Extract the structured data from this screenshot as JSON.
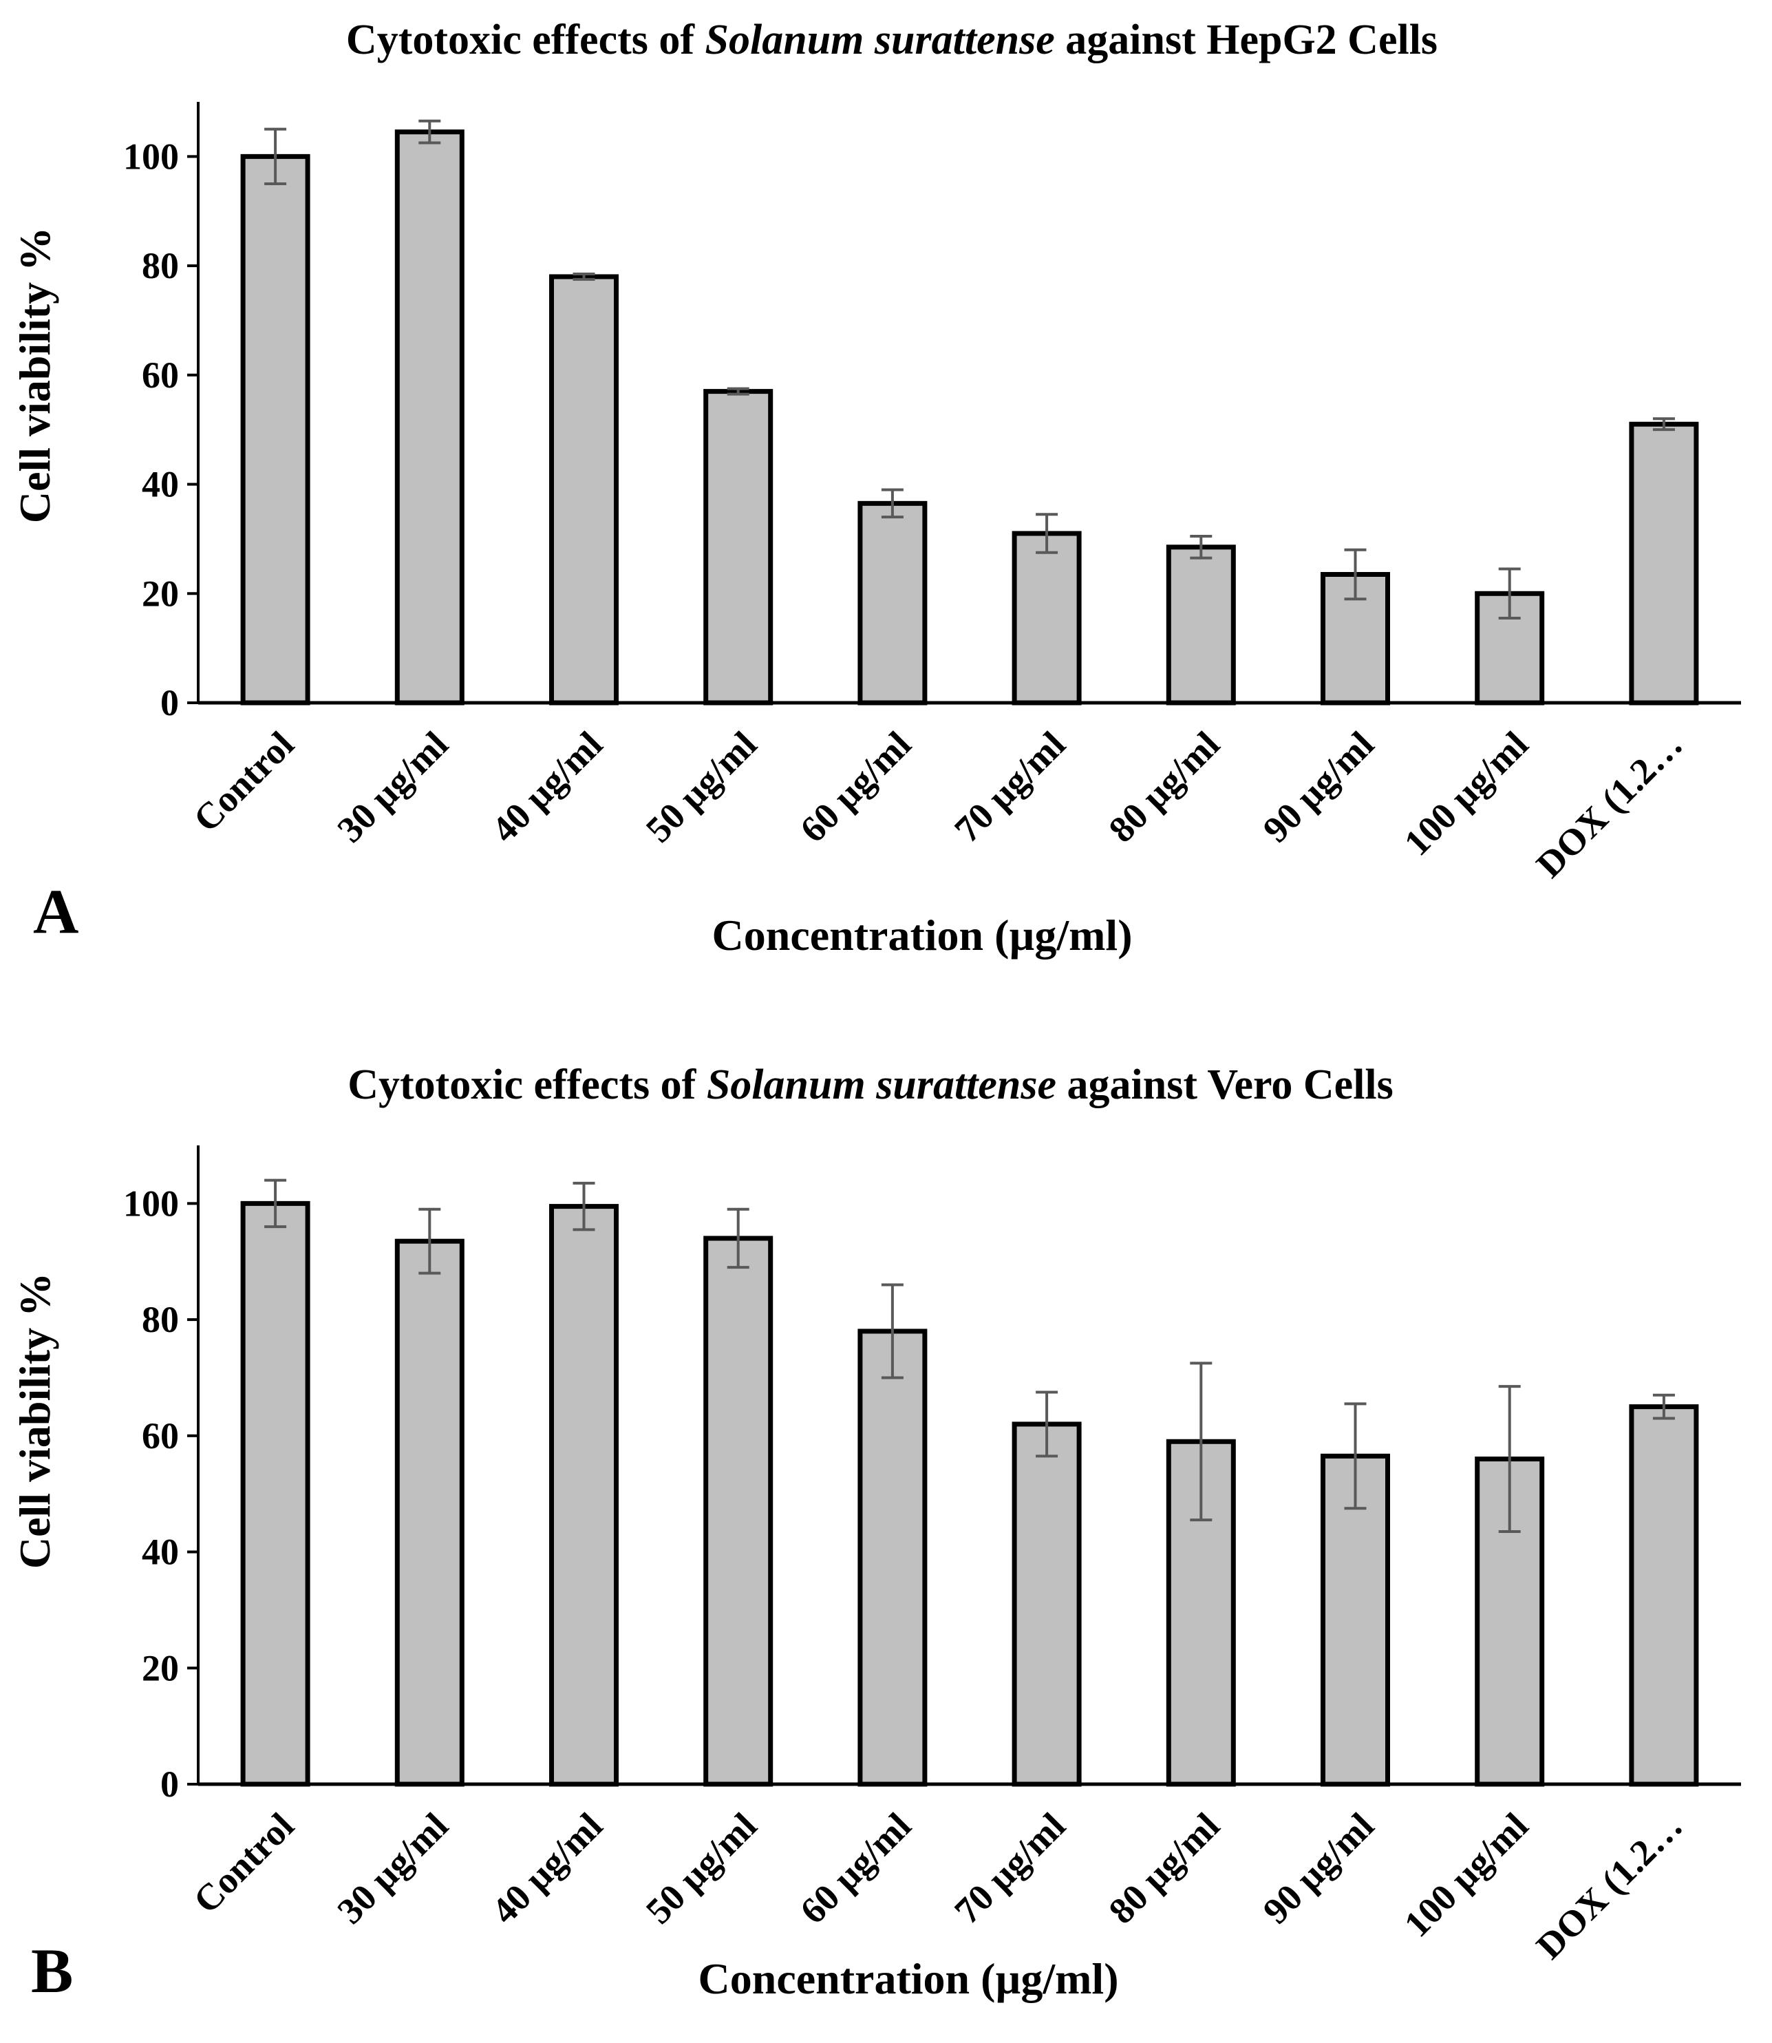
{
  "chart_data": [
    {
      "type": "bar",
      "panel_label": "A",
      "title": {
        "prefix": "Cytotoxic effects of ",
        "species": "Solanum surattense",
        "suffix": " against HepG2 Cells"
      },
      "xlabel": "Concentration (µg/ml)",
      "ylabel": "Cell viability  %",
      "ylim": [
        0,
        110
      ],
      "yticks": [
        0,
        20,
        40,
        60,
        80,
        100
      ],
      "categories": [
        "Control",
        "30 µg/ml",
        "40 µg/ml",
        "50 µg/ml",
        "60 µg/ml",
        "70 µg/ml",
        "80 µg/ml",
        "90 µg/ml",
        "100 µg/ml",
        "DOX (1.2…"
      ],
      "values": [
        100,
        104.5,
        78,
        57,
        36.5,
        31,
        28.5,
        23.5,
        20,
        51
      ],
      "errors": [
        5,
        2,
        0.5,
        0.5,
        2.5,
        3.5,
        2,
        4.5,
        4.5,
        1
      ],
      "bar_color": "#c0c0c0",
      "error_bar_color": "#595959"
    },
    {
      "type": "bar",
      "panel_label": "B",
      "title": {
        "prefix": "Cytotoxic effects of ",
        "species": "Solanum surattense",
        "suffix": " against Vero Cells"
      },
      "xlabel": "Concentration (µg/ml)",
      "ylabel": "Cell viability  %",
      "ylim": [
        0,
        110
      ],
      "yticks": [
        0,
        20,
        40,
        60,
        80,
        100
      ],
      "categories": [
        "Control",
        "30 µg/ml",
        "40 µg/ml",
        "50 µg/ml",
        "60 µg/ml",
        "70 µg/ml",
        "80 µg/ml",
        "90 µg/ml",
        "100 µg/ml",
        "DOX (1.2…"
      ],
      "values": [
        100,
        93.5,
        99.5,
        94,
        78,
        62,
        59,
        56.5,
        56,
        65
      ],
      "errors": [
        4,
        5.5,
        4,
        5,
        8,
        5.5,
        13.5,
        9,
        12.5,
        2
      ],
      "bar_color": "#c0c0c0",
      "error_bar_color": "#595959"
    }
  ]
}
